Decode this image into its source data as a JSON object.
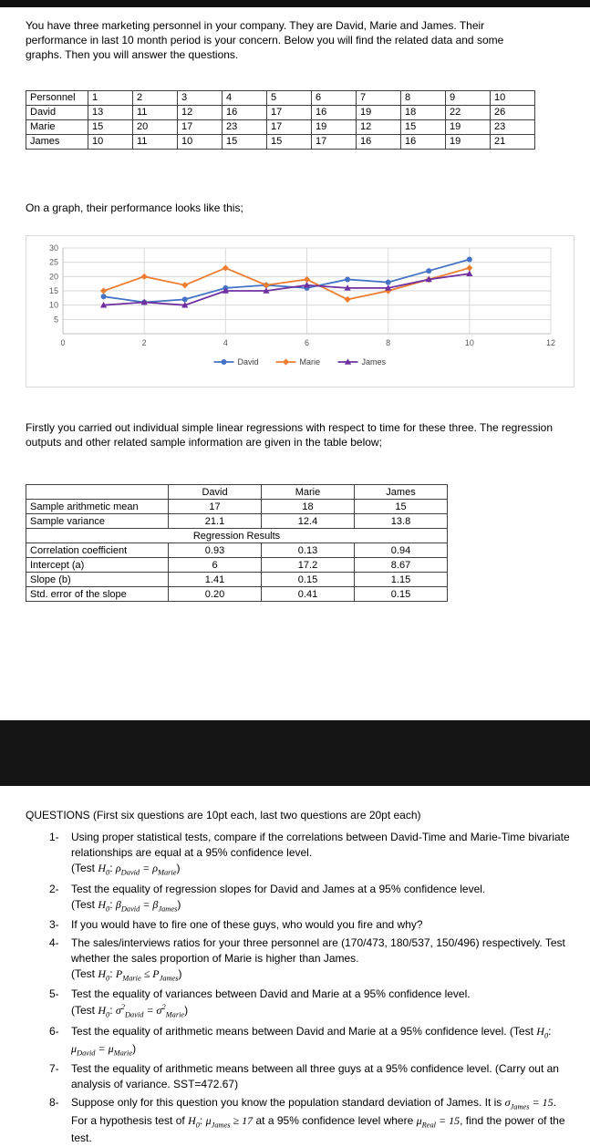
{
  "page1": {
    "intro": "You have three marketing personnel in your company. They are David, Marie and James. Their performance in last 10 month period is your concern. Below you will find the related data and some graphs. Then you will answer the questions.",
    "data_table": {
      "headers": [
        "Personnel",
        "1",
        "2",
        "3",
        "4",
        "5",
        "6",
        "7",
        "8",
        "9",
        "10"
      ],
      "rows": [
        [
          "David",
          "13",
          "11",
          "12",
          "16",
          "17",
          "16",
          "19",
          "18",
          "22",
          "26"
        ],
        [
          "Marie",
          "15",
          "20",
          "17",
          "23",
          "17",
          "19",
          "12",
          "15",
          "19",
          "23"
        ],
        [
          "James",
          "10",
          "11",
          "10",
          "15",
          "15",
          "17",
          "16",
          "16",
          "19",
          "21"
        ]
      ]
    },
    "chart_caption": "On a graph, their performance looks like this;",
    "regression_intro": "Firstly you carried out individual simple linear regressions with respect to time for these three. The regression outputs and other related sample information are given in the table below;",
    "regression_table": {
      "headers": [
        "",
        "David",
        "Marie",
        "James"
      ],
      "rows": [
        {
          "label": "Sample arithmetic mean",
          "values": [
            "17",
            "18",
            "15"
          ]
        },
        {
          "label": "Sample variance",
          "values": [
            "21.1",
            "12.4",
            "13.8"
          ]
        },
        {
          "merge": "Regression Results"
        },
        {
          "label": "Correlation coefficient",
          "values": [
            "0.93",
            "0.13",
            "0.94"
          ]
        },
        {
          "label": "Intercept (a)",
          "values": [
            "6",
            "17.2",
            "8.67"
          ]
        },
        {
          "label": "Slope (b)",
          "values": [
            "1.41",
            "0.15",
            "1.15"
          ]
        },
        {
          "label": "Std. error of the slope",
          "values": [
            "0.20",
            "0.41",
            "0.15"
          ]
        }
      ]
    }
  },
  "chart_data": {
    "type": "line",
    "title": "",
    "xlabel": "",
    "ylabel": "",
    "x": [
      1,
      2,
      3,
      4,
      5,
      6,
      7,
      8,
      9,
      10
    ],
    "series": [
      {
        "name": "David",
        "color": "#4472C4",
        "marker": "circle",
        "values": [
          13,
          11,
          12,
          16,
          17,
          16,
          19,
          18,
          22,
          26
        ]
      },
      {
        "name": "Marie",
        "color": "#ED7D31",
        "marker": "diamond",
        "values": [
          15,
          20,
          17,
          23,
          17,
          19,
          12,
          15,
          19,
          23
        ]
      },
      {
        "name": "James",
        "color": "#7030A0",
        "marker": "triangle",
        "values": [
          10,
          11,
          10,
          15,
          15,
          17,
          16,
          16,
          19,
          21
        ]
      }
    ],
    "xlim": [
      0,
      12
    ],
    "ylim": [
      0,
      30
    ],
    "xticks": [
      0,
      2,
      4,
      6,
      8,
      10,
      12
    ],
    "yticks": [
      5,
      10,
      15,
      20,
      25,
      30
    ],
    "grid": true,
    "legend_position": "bottom"
  },
  "page2": {
    "questions_header": "QUESTIONS (First six questions are 10pt each, last two questions are 20pt each)",
    "questions": [
      {
        "num": "1-",
        "lines": [
          "Using proper statistical tests, compare if the correlations between David-Time and Marie-Time bivariate relationships are equal at a 95% confidence level.",
          "(Test $H_{0}$: $ρ_{David} = ρ_{Marie}$)"
        ]
      },
      {
        "num": "2-",
        "lines": [
          "Test the equality of regression slopes for David and James at a 95% confidence level.",
          "(Test $H_{0}$: $β_{David} = β_{James}$)"
        ]
      },
      {
        "num": "3-",
        "lines": [
          "If you would have to fire one of these guys, who would you fire and why?"
        ]
      },
      {
        "num": "4-",
        "lines": [
          "The sales/interviews ratios for your three personnel are (170/473, 180/537, 150/496) respectively. Test whether the sales proportion of Marie is higher than James.",
          "(Test $H_{0}$: $P_{Marie} ≤ P_{James}$)"
        ]
      },
      {
        "num": "5-",
        "lines": [
          "Test the equality of variances between David and Marie at a 95% confidence level.",
          "(Test $H_{0}$: $σ^{2}_{David} = σ^{2}_{Marie}$)"
        ]
      },
      {
        "num": "6-",
        "lines": [
          "Test the equality of arithmetic means between David and Marie at a 95% confidence level. (Test $H_{0}$: $μ_{David} = μ_{Marie}$)"
        ]
      },
      {
        "num": "7-",
        "lines": [
          "Test the equality of arithmetic means between all three guys at a 95% confidence level. (Carry out an analysis of variance. SST=472.67)"
        ]
      },
      {
        "num": "8-",
        "lines": [
          "Suppose only for this question you know the population standard deviation of James. It is $σ_{James} = 15$. For a hypothesis test of $H_{0}$: $μ_{James} ≥ 17$ at a 95% confidence level where $μ_{Real} = 15$, find the power of the test."
        ]
      }
    ]
  }
}
